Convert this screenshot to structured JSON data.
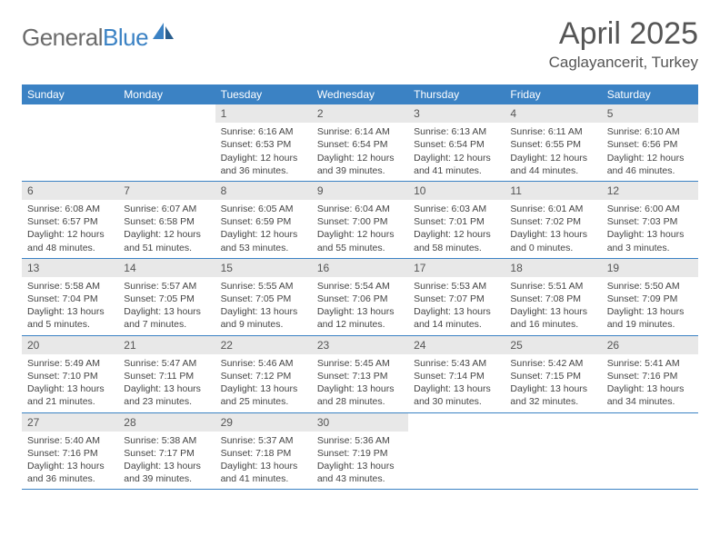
{
  "logo": {
    "text1": "General",
    "text2": "Blue"
  },
  "title": "April 2025",
  "location": "Caglayancerit, Turkey",
  "colors": {
    "header_bg": "#3b82c4",
    "header_text": "#ffffff",
    "daynum_bg": "#e8e8e8",
    "border": "#3b82c4",
    "body_bg": "#ffffff",
    "text": "#444444",
    "title_text": "#555555",
    "logo_gray": "#6b6b6b",
    "logo_blue": "#3b82c4"
  },
  "typography": {
    "title_fontsize": 34,
    "location_fontsize": 17,
    "logo_fontsize": 26,
    "th_fontsize": 12,
    "daynum_fontsize": 12,
    "cell_fontsize": 10.5
  },
  "weekdays": [
    "Sunday",
    "Monday",
    "Tuesday",
    "Wednesday",
    "Thursday",
    "Friday",
    "Saturday"
  ],
  "grid": [
    [
      null,
      null,
      {
        "n": "1",
        "sr": "6:16 AM",
        "ss": "6:53 PM",
        "dl": "12 hours and 36 minutes."
      },
      {
        "n": "2",
        "sr": "6:14 AM",
        "ss": "6:54 PM",
        "dl": "12 hours and 39 minutes."
      },
      {
        "n": "3",
        "sr": "6:13 AM",
        "ss": "6:54 PM",
        "dl": "12 hours and 41 minutes."
      },
      {
        "n": "4",
        "sr": "6:11 AM",
        "ss": "6:55 PM",
        "dl": "12 hours and 44 minutes."
      },
      {
        "n": "5",
        "sr": "6:10 AM",
        "ss": "6:56 PM",
        "dl": "12 hours and 46 minutes."
      }
    ],
    [
      {
        "n": "6",
        "sr": "6:08 AM",
        "ss": "6:57 PM",
        "dl": "12 hours and 48 minutes."
      },
      {
        "n": "7",
        "sr": "6:07 AM",
        "ss": "6:58 PM",
        "dl": "12 hours and 51 minutes."
      },
      {
        "n": "8",
        "sr": "6:05 AM",
        "ss": "6:59 PM",
        "dl": "12 hours and 53 minutes."
      },
      {
        "n": "9",
        "sr": "6:04 AM",
        "ss": "7:00 PM",
        "dl": "12 hours and 55 minutes."
      },
      {
        "n": "10",
        "sr": "6:03 AM",
        "ss": "7:01 PM",
        "dl": "12 hours and 58 minutes."
      },
      {
        "n": "11",
        "sr": "6:01 AM",
        "ss": "7:02 PM",
        "dl": "13 hours and 0 minutes."
      },
      {
        "n": "12",
        "sr": "6:00 AM",
        "ss": "7:03 PM",
        "dl": "13 hours and 3 minutes."
      }
    ],
    [
      {
        "n": "13",
        "sr": "5:58 AM",
        "ss": "7:04 PM",
        "dl": "13 hours and 5 minutes."
      },
      {
        "n": "14",
        "sr": "5:57 AM",
        "ss": "7:05 PM",
        "dl": "13 hours and 7 minutes."
      },
      {
        "n": "15",
        "sr": "5:55 AM",
        "ss": "7:05 PM",
        "dl": "13 hours and 9 minutes."
      },
      {
        "n": "16",
        "sr": "5:54 AM",
        "ss": "7:06 PM",
        "dl": "13 hours and 12 minutes."
      },
      {
        "n": "17",
        "sr": "5:53 AM",
        "ss": "7:07 PM",
        "dl": "13 hours and 14 minutes."
      },
      {
        "n": "18",
        "sr": "5:51 AM",
        "ss": "7:08 PM",
        "dl": "13 hours and 16 minutes."
      },
      {
        "n": "19",
        "sr": "5:50 AM",
        "ss": "7:09 PM",
        "dl": "13 hours and 19 minutes."
      }
    ],
    [
      {
        "n": "20",
        "sr": "5:49 AM",
        "ss": "7:10 PM",
        "dl": "13 hours and 21 minutes."
      },
      {
        "n": "21",
        "sr": "5:47 AM",
        "ss": "7:11 PM",
        "dl": "13 hours and 23 minutes."
      },
      {
        "n": "22",
        "sr": "5:46 AM",
        "ss": "7:12 PM",
        "dl": "13 hours and 25 minutes."
      },
      {
        "n": "23",
        "sr": "5:45 AM",
        "ss": "7:13 PM",
        "dl": "13 hours and 28 minutes."
      },
      {
        "n": "24",
        "sr": "5:43 AM",
        "ss": "7:14 PM",
        "dl": "13 hours and 30 minutes."
      },
      {
        "n": "25",
        "sr": "5:42 AM",
        "ss": "7:15 PM",
        "dl": "13 hours and 32 minutes."
      },
      {
        "n": "26",
        "sr": "5:41 AM",
        "ss": "7:16 PM",
        "dl": "13 hours and 34 minutes."
      }
    ],
    [
      {
        "n": "27",
        "sr": "5:40 AM",
        "ss": "7:16 PM",
        "dl": "13 hours and 36 minutes."
      },
      {
        "n": "28",
        "sr": "5:38 AM",
        "ss": "7:17 PM",
        "dl": "13 hours and 39 minutes."
      },
      {
        "n": "29",
        "sr": "5:37 AM",
        "ss": "7:18 PM",
        "dl": "13 hours and 41 minutes."
      },
      {
        "n": "30",
        "sr": "5:36 AM",
        "ss": "7:19 PM",
        "dl": "13 hours and 43 minutes."
      },
      null,
      null,
      null
    ]
  ],
  "labels": {
    "sunrise": "Sunrise:",
    "sunset": "Sunset:",
    "daylight": "Daylight:"
  }
}
